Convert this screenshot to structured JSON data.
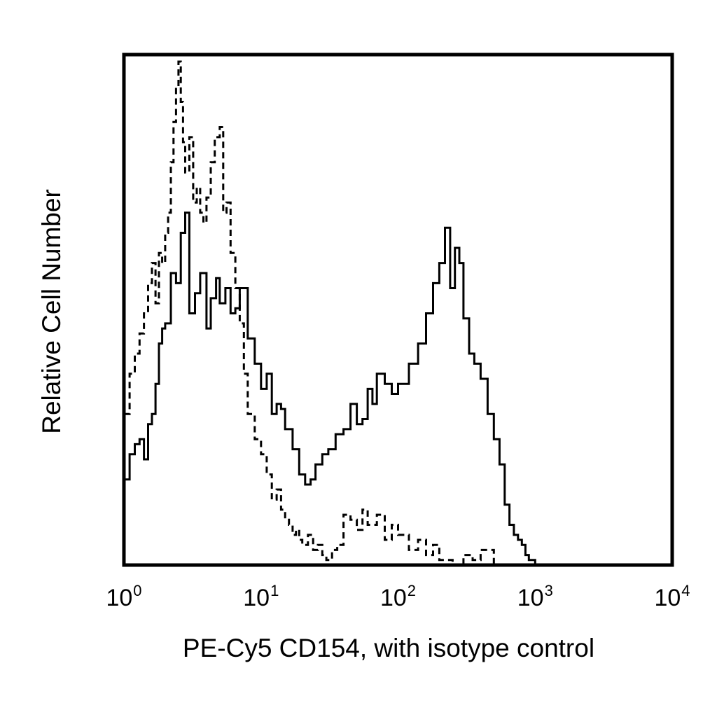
{
  "chart_data": {
    "type": "line",
    "chart_subtype": "flow-cytometry histogram overlay",
    "xlabel": "PE-Cy5 CD154, with isotype control",
    "ylabel": "Relative Cell Number",
    "x_scale": "log",
    "xlim": [
      1,
      10000
    ],
    "ylim": [
      0,
      100
    ],
    "y_ticks_shown": false,
    "grid": false,
    "legend": "none",
    "x_ticks": [
      {
        "base": "10",
        "exp": "0",
        "value": 1
      },
      {
        "base": "10",
        "exp": "1",
        "value": 10
      },
      {
        "base": "10",
        "exp": "2",
        "value": 100
      },
      {
        "base": "10",
        "exp": "3",
        "value": 1000
      },
      {
        "base": "10",
        "exp": "4",
        "value": 10000
      }
    ],
    "colors": {
      "line": "#000000",
      "frame": "#000000",
      "background": "#ffffff"
    },
    "series": [
      {
        "line_style": "solid",
        "x": [
          1.0,
          1.1,
          1.2,
          1.3,
          1.4,
          1.5,
          1.6,
          1.7,
          1.8,
          1.9,
          2.0,
          2.2,
          2.4,
          2.6,
          2.8,
          3.0,
          3.3,
          3.6,
          4.0,
          4.3,
          4.7,
          5.0,
          5.5,
          6.0,
          6.5,
          7.0,
          8.0,
          9.0,
          10.0,
          11,
          12,
          13,
          14,
          15,
          17,
          19,
          21,
          23,
          25,
          28,
          31,
          35,
          40,
          45,
          50,
          55,
          60,
          65,
          70,
          80,
          90,
          100,
          120,
          140,
          160,
          180,
          200,
          220,
          240,
          260,
          280,
          300,
          330,
          360,
          400,
          450,
          500,
          550,
          600,
          650,
          700,
          750,
          800,
          850,
          900,
          1000
        ],
        "y": [
          17,
          22,
          24,
          25,
          21,
          28,
          30,
          36,
          44,
          47,
          48,
          58,
          56,
          66,
          70,
          50,
          54,
          58,
          47,
          53,
          57,
          52,
          55,
          50,
          51,
          55,
          45,
          40,
          35,
          38,
          30,
          32,
          31,
          27,
          23,
          18,
          16,
          17,
          20,
          22,
          23,
          26,
          27,
          32,
          28,
          29,
          35,
          32,
          38,
          36,
          34,
          36,
          40,
          44,
          50,
          56,
          60,
          67,
          55,
          63,
          60,
          49,
          42,
          40,
          37,
          30,
          25,
          20,
          12,
          8,
          6,
          5,
          4,
          2,
          1,
          0
        ]
      },
      {
        "line_style": "dashed",
        "x": [
          1.0,
          1.1,
          1.2,
          1.3,
          1.4,
          1.5,
          1.6,
          1.7,
          1.8,
          1.9,
          2.0,
          2.1,
          2.2,
          2.3,
          2.4,
          2.5,
          2.6,
          2.7,
          2.8,
          3.0,
          3.2,
          3.4,
          3.6,
          3.8,
          4.0,
          4.3,
          4.6,
          5.0,
          5.3,
          5.6,
          6.0,
          6.5,
          7.0,
          7.5,
          8.0,
          9.0,
          10.0,
          11,
          12,
          13,
          14,
          15,
          16,
          17,
          18,
          19,
          20,
          22,
          24,
          26,
          28,
          30,
          33,
          36,
          40,
          45,
          50,
          55,
          60,
          70,
          80,
          90,
          100,
          120,
          140,
          160,
          180,
          200,
          250,
          300,
          350,
          400,
          500
        ],
        "y": [
          30,
          38,
          42,
          46,
          50,
          56,
          60,
          52,
          62,
          60,
          66,
          70,
          80,
          88,
          95,
          100,
          92,
          84,
          78,
          85,
          72,
          75,
          70,
          68,
          73,
          80,
          85,
          87,
          70,
          72,
          62,
          55,
          48,
          38,
          30,
          25,
          22,
          18,
          13,
          15,
          11,
          9,
          8,
          6,
          7,
          5,
          4,
          6,
          3,
          4,
          2,
          1,
          3,
          4,
          10,
          9,
          7,
          11,
          8,
          10,
          5,
          8,
          6,
          3,
          5,
          2,
          4,
          1,
          0,
          2,
          1,
          3,
          0
        ]
      }
    ]
  }
}
